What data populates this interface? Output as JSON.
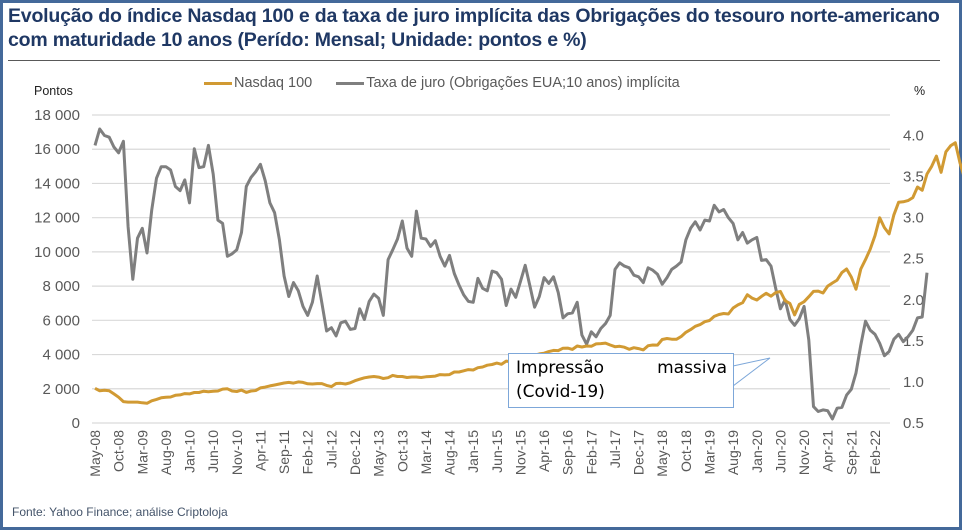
{
  "title": "Evolução do índice Nasdaq 100 e da taxa de juro implícita das Obrigações do tesouro norte-americano com maturidade 10 anos (Perído: Mensal; Unidade: pontos e %)",
  "footer": "Fonte: Yahoo Finance; análise Criptoloja",
  "colors": {
    "nasdaq": "#d19a33",
    "yield": "#7f7f7f",
    "frame": "#44699a",
    "title": "#1f3864",
    "grid": "#d9d9d9",
    "callout_border": "#7da7d9"
  },
  "annotation": {
    "line1_a": "Impressão",
    "line1_b": "massiva",
    "line2": "(Covid-19)"
  },
  "chart_data": {
    "type": "line",
    "title": "Evolução do índice Nasdaq 100 e da taxa de juro implícita das Obrigações do tesouro norte-americano com maturidade 10 anos (Perído: Mensal; Unidade: pontos e %)",
    "xlabel": "",
    "ylabel_left": "Pontos",
    "ylabel_right": "%",
    "ylim_left": [
      0,
      18000
    ],
    "ylim_right": [
      0.5,
      4.25
    ],
    "yticks_left": [
      "0",
      "2 000",
      "4 000",
      "6 000",
      "8 000",
      "10 000",
      "12 000",
      "14 000",
      "16 000",
      "18 000"
    ],
    "yticks_left_values": [
      0,
      2000,
      4000,
      6000,
      8000,
      10000,
      12000,
      14000,
      16000,
      18000
    ],
    "yticks_right": [
      "0.5",
      "1.0",
      "1.5",
      "2.0",
      "2.5",
      "3.0",
      "3.5",
      "4.0"
    ],
    "yticks_right_values": [
      0.5,
      1.0,
      1.5,
      2.0,
      2.5,
      3.0,
      3.5,
      4.0
    ],
    "grid": true,
    "legend_position": "top",
    "start_month": "May-08",
    "x_tick_labels": [
      "May-08",
      "Oct-08",
      "Mar-09",
      "Aug-09",
      "Jan-10",
      "Jun-10",
      "Nov-10",
      "Apr-11",
      "Sep-11",
      "Feb-12",
      "Jul-12",
      "Dec-12",
      "May-13",
      "Oct-13",
      "Mar-14",
      "Aug-14",
      "Jan-15",
      "Jun-15",
      "Nov-15",
      "Apr-16",
      "Sep-16",
      "Feb-17",
      "Jul-17",
      "Dec-17",
      "May-18",
      "Oct-18",
      "Mar-19",
      "Aug-19",
      "Jan-20",
      "Jun-20",
      "Nov-20",
      "Apr-21",
      "Sep-21",
      "Feb-22"
    ],
    "x_tick_step_months": 5,
    "series": [
      {
        "name": "Nasdaq 100",
        "axis": "left",
        "values": [
          2030,
          1880,
          1910,
          1880,
          1700,
          1510,
          1250,
          1220,
          1220,
          1220,
          1180,
          1150,
          1300,
          1380,
          1470,
          1500,
          1520,
          1620,
          1640,
          1720,
          1700,
          1780,
          1780,
          1860,
          1830,
          1850,
          1870,
          1980,
          2000,
          1870,
          1840,
          1920,
          1790,
          1870,
          1900,
          2050,
          2100,
          2170,
          2220,
          2280,
          2340,
          2370,
          2330,
          2400,
          2370,
          2290,
          2280,
          2300,
          2300,
          2200,
          2130,
          2310,
          2320,
          2280,
          2350,
          2470,
          2560,
          2640,
          2690,
          2720,
          2680,
          2600,
          2650,
          2780,
          2720,
          2720,
          2660,
          2690,
          2690,
          2660,
          2700,
          2720,
          2740,
          2830,
          2810,
          2830,
          2980,
          2980,
          3050,
          3120,
          3100,
          3230,
          3270,
          3380,
          3420,
          3500,
          3430,
          3620,
          3580,
          3600,
          3750,
          3810,
          3870,
          3960,
          4040,
          4080,
          4170,
          4240,
          4230,
          4370,
          4380,
          4300,
          4500,
          4440,
          4500,
          4480,
          4620,
          4640,
          4670,
          4560,
          4460,
          4480,
          4430,
          4310,
          4400,
          4350,
          4270,
          4520,
          4560,
          4550,
          4880,
          4940,
          4900,
          4890,
          5050,
          5300,
          5460,
          5650,
          5750,
          5920,
          5990,
          6230,
          6340,
          6400,
          6370,
          6720,
          6900,
          7030,
          7500,
          7300,
          7190,
          7400,
          7580,
          7410,
          7620,
          7690,
          7150,
          6990,
          6320,
          6930,
          7090,
          7380,
          7690,
          7710,
          7600,
          8000,
          8180,
          8350,
          8790,
          9000,
          8530,
          7820,
          9000,
          9550,
          10160,
          10950,
          11990,
          11420,
          11050,
          12170,
          12900,
          12930,
          13000,
          13170,
          13790,
          13600,
          14550,
          15000,
          15600,
          14650,
          15850,
          16200,
          16380,
          15200,
          14250,
          14850,
          13600
        ]
      },
      {
        "name": "Taxa de juro (Obrigações EUA;10 anos) implícita",
        "axis": "right",
        "values": [
          3.88,
          4.08,
          4.0,
          3.98,
          3.86,
          3.79,
          3.93,
          2.89,
          2.25,
          2.75,
          2.87,
          2.57,
          3.09,
          3.48,
          3.62,
          3.62,
          3.58,
          3.38,
          3.33,
          3.46,
          3.18,
          3.84,
          3.61,
          3.62,
          3.88,
          3.53,
          2.97,
          2.93,
          2.53,
          2.56,
          2.61,
          2.82,
          3.38,
          3.49,
          3.56,
          3.65,
          3.45,
          3.18,
          3.06,
          2.73,
          2.29,
          2.04,
          2.21,
          2.11,
          1.92,
          1.81,
          1.97,
          2.29,
          1.96,
          1.62,
          1.66,
          1.56,
          1.72,
          1.74,
          1.64,
          1.65,
          1.89,
          1.76,
          1.98,
          2.07,
          2.02,
          1.81,
          2.49,
          2.61,
          2.74,
          2.96,
          2.63,
          2.53,
          3.08,
          2.75,
          2.74,
          2.65,
          2.72,
          2.53,
          2.41,
          2.54,
          2.32,
          2.18,
          2.06,
          1.98,
          1.97,
          2.26,
          2.14,
          2.11,
          2.35,
          2.33,
          2.25,
          1.93,
          2.13,
          2.03,
          2.22,
          2.42,
          2.17,
          1.91,
          2.04,
          2.27,
          2.2,
          2.28,
          2.09,
          1.78,
          1.83,
          1.84,
          1.97,
          1.57,
          1.46,
          1.61,
          1.55,
          1.65,
          1.71,
          1.81,
          2.37,
          2.45,
          2.41,
          2.39,
          2.3,
          2.28,
          2.21,
          2.39,
          2.36,
          2.31,
          2.19,
          2.27,
          2.37,
          2.41,
          2.46,
          2.73,
          2.87,
          2.95,
          2.85,
          2.97,
          2.96,
          3.15,
          3.07,
          3.1,
          3.0,
          2.93,
          2.73,
          2.82,
          2.69,
          2.73,
          2.76,
          2.48,
          2.49,
          2.41,
          2.14,
          1.89,
          2.0,
          1.76,
          1.69,
          1.77,
          1.92,
          1.51,
          0.7,
          0.64,
          0.66,
          0.65,
          0.55,
          0.68,
          0.69,
          0.84,
          0.91,
          1.11,
          1.45,
          1.74,
          1.63,
          1.58,
          1.47,
          1.32,
          1.37,
          1.52,
          1.58,
          1.49,
          1.55,
          1.63,
          1.78,
          1.79,
          2.33
        ]
      }
    ]
  }
}
